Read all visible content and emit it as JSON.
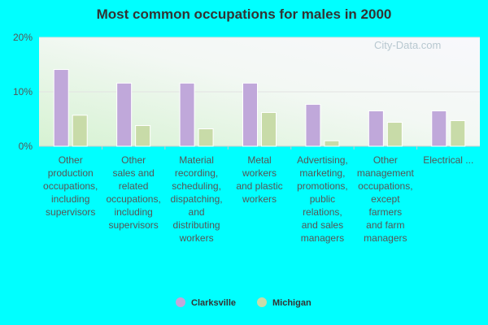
{
  "chart_data": {
    "type": "bar",
    "title": "Most common occupations for males in 2000",
    "categories": [
      [
        "Other",
        "production",
        "occupations,",
        "including",
        "supervisors"
      ],
      [
        "Other",
        "sales and",
        "related",
        "occupations,",
        "including",
        "supervisors"
      ],
      [
        "Material",
        "recording,",
        "scheduling,",
        "dispatching,",
        "and",
        "distributing",
        "workers"
      ],
      [
        "Metal",
        "workers",
        "and plastic",
        "workers"
      ],
      [
        "Advertising,",
        "marketing,",
        "promotions,",
        "public",
        "relations,",
        "and sales",
        "managers"
      ],
      [
        "Other",
        "management",
        "occupations,",
        "except",
        "farmers",
        "and farm",
        "managers"
      ],
      [
        "Electrical ..."
      ]
    ],
    "series": [
      {
        "name": "Clarksville",
        "color": "#c0a8da",
        "values": [
          14.1,
          11.6,
          11.6,
          11.6,
          7.7,
          6.5,
          6.5
        ]
      },
      {
        "name": "Michigan",
        "color": "#c8dba8",
        "values": [
          5.7,
          3.8,
          3.2,
          6.2,
          1.0,
          4.4,
          4.7
        ]
      }
    ],
    "yticks": [
      "0%",
      "10%",
      "20%"
    ],
    "ytick_values": [
      0,
      10,
      20
    ],
    "ylim": [
      0,
      20
    ],
    "xlabel": "",
    "ylabel": "",
    "grid": true,
    "legend_position": "bottom-center"
  },
  "watermark": "City-Data.com"
}
